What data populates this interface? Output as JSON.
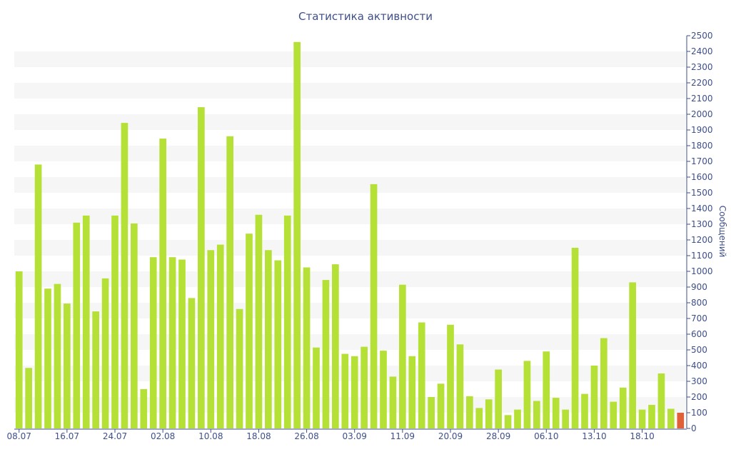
{
  "chart_data": {
    "type": "bar",
    "title": "Статистика активности",
    "ylabel": "Сообщений",
    "xlabel": "",
    "ylim": [
      0,
      2500
    ],
    "y_ticks": [
      0,
      100,
      200,
      300,
      400,
      500,
      600,
      700,
      800,
      900,
      1000,
      1100,
      1200,
      1300,
      1400,
      1500,
      1600,
      1700,
      1800,
      1900,
      2000,
      2100,
      2200,
      2300,
      2400,
      2500
    ],
    "x_tick_labels": [
      {
        "index": 0,
        "label": "08.07"
      },
      {
        "index": 5,
        "label": "16.07"
      },
      {
        "index": 10,
        "label": "24.07"
      },
      {
        "index": 15,
        "label": "02.08"
      },
      {
        "index": 20,
        "label": "10.08"
      },
      {
        "index": 25,
        "label": "18.08"
      },
      {
        "index": 30,
        "label": "26.08"
      },
      {
        "index": 35,
        "label": "03.09"
      },
      {
        "index": 40,
        "label": "11.09"
      },
      {
        "index": 45,
        "label": "20.09"
      },
      {
        "index": 50,
        "label": "28.09"
      },
      {
        "index": 55,
        "label": "06.10"
      },
      {
        "index": 60,
        "label": "13.10"
      },
      {
        "index": 65,
        "label": "18.10"
      }
    ],
    "grid": "horizontal bands",
    "legend": "none",
    "colors": {
      "bar": "#b5e035",
      "highlight": "#e0603a",
      "text": "#3e4f8a",
      "band": "#f6f6f6"
    },
    "values": [
      1000,
      385,
      1680,
      890,
      920,
      795,
      1310,
      1355,
      745,
      955,
      1355,
      1945,
      1305,
      250,
      1090,
      1845,
      1090,
      1075,
      830,
      2045,
      1135,
      1170,
      1860,
      760,
      1240,
      1360,
      1135,
      1070,
      1355,
      2460,
      1025,
      515,
      945,
      1045,
      475,
      460,
      520,
      1555,
      495,
      330,
      915,
      460,
      675,
      200,
      285,
      660,
      535,
      205,
      130,
      185,
      375,
      85,
      120,
      430,
      175,
      490,
      195,
      120,
      1150,
      220,
      400,
      575,
      170,
      260,
      930,
      120,
      150,
      350,
      125,
      100
    ],
    "highlight_index": 69
  }
}
